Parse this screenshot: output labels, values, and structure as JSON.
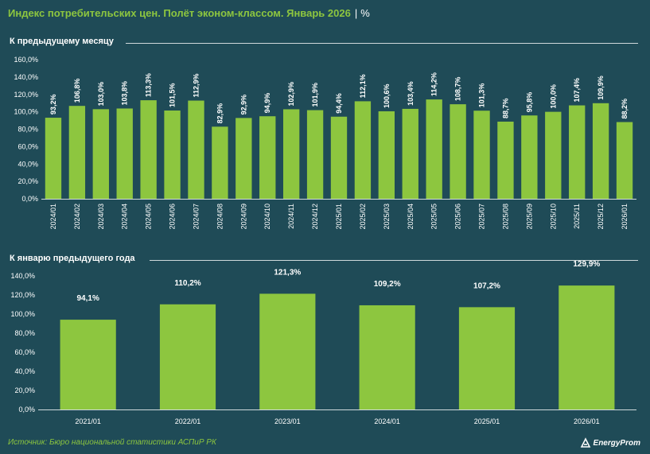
{
  "title": "Индекс потребительских цен. Полёт эконом-классом. Январь 2026",
  "title_sep": "|",
  "unit": "%",
  "colors": {
    "background": "#1f4b57",
    "bar": "#8dc63f",
    "title": "#8dc63f",
    "text": "#ffffff",
    "grid": "#cfd9db"
  },
  "source": "Источник: Бюро национальной статистики АСПиР РК",
  "logo": {
    "text": "EnergyProm",
    "icon": "energyprom-logo-icon"
  },
  "chart_data": [
    {
      "type": "bar",
      "title": "К предыдущему месяцу",
      "categories": [
        "2024/01",
        "2024/02",
        "2024/03",
        "2024/04",
        "2024/05",
        "2024/06",
        "2024/07",
        "2024/08",
        "2024/09",
        "2024/10",
        "2024/11",
        "2024/12",
        "2025/01",
        "2025/02",
        "2025/03",
        "2025/04",
        "2025/05",
        "2025/06",
        "2025/07",
        "2025/08",
        "2025/09",
        "2025/10",
        "2025/11",
        "2025/12",
        "2026/01"
      ],
      "values": [
        93.2,
        106.8,
        103.0,
        103.8,
        113.3,
        101.5,
        112.9,
        82.9,
        92.9,
        94.9,
        102.9,
        101.9,
        94.4,
        112.1,
        100.6,
        103.4,
        114.2,
        108.7,
        101.3,
        88.7,
        95.8,
        100.0,
        107.4,
        109.9,
        88.2
      ],
      "labels": [
        "93,2%",
        "106,8%",
        "103,0%",
        "103,8%",
        "113,3%",
        "101,5%",
        "112,9%",
        "82,9%",
        "92,9%",
        "94,9%",
        "102,9%",
        "101,9%",
        "94,4%",
        "112,1%",
        "100,6%",
        "103,4%",
        "114,2%",
        "108,7%",
        "101,3%",
        "88,7%",
        "95,8%",
        "100,0%",
        "107,4%",
        "109,9%",
        "88,2%"
      ],
      "yticks": [
        "0,0%",
        "20,0%",
        "40,0%",
        "60,0%",
        "80,0%",
        "100,0%",
        "120,0%",
        "140,0%",
        "160,0%"
      ],
      "ylim": [
        0,
        160
      ],
      "grid": false,
      "legend": "none"
    },
    {
      "type": "bar",
      "title": "К январю предыдущего года",
      "categories": [
        "2021/01",
        "2022/01",
        "2023/01",
        "2024/01",
        "2025/01",
        "2026/01"
      ],
      "values": [
        94.1,
        110.2,
        121.3,
        109.2,
        107.2,
        129.9
      ],
      "labels": [
        "94,1%",
        "110,2%",
        "121,3%",
        "109,2%",
        "107,2%",
        "129,9%"
      ],
      "yticks": [
        "0,0%",
        "20,0%",
        "40,0%",
        "60,0%",
        "80,0%",
        "100,0%",
        "120,0%",
        "140,0%"
      ],
      "ylim": [
        0,
        140
      ],
      "grid": false,
      "legend": "none"
    }
  ]
}
